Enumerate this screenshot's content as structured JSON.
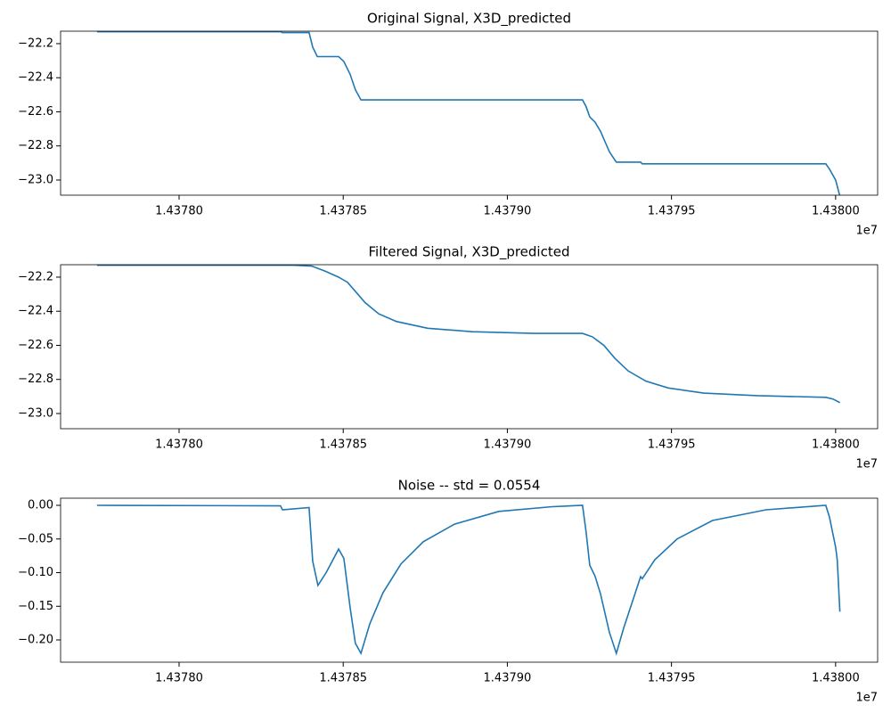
{
  "chart_data": [
    {
      "type": "line",
      "title": "Original Signal, X3D_predicted",
      "color": "#1f77b4",
      "x_offset_label": "1e7",
      "x": [
        14377750,
        14378309,
        14378315,
        14378396,
        14378407,
        14378421,
        14378486,
        14378502,
        14378521,
        14378537,
        14378554,
        14379229,
        14379240,
        14379251,
        14379267,
        14379284,
        14379311,
        14379332,
        14379406,
        14379411,
        14379970,
        14379981,
        14380000,
        14380013
      ],
      "values": [
        -22.13,
        -22.13,
        -22.135,
        -22.135,
        -22.22,
        -22.276,
        -22.276,
        -22.305,
        -22.38,
        -22.47,
        -22.53,
        -22.53,
        -22.57,
        -22.63,
        -22.66,
        -22.715,
        -22.835,
        -22.895,
        -22.895,
        -22.905,
        -22.905,
        -22.935,
        -23.0,
        -23.095
      ],
      "xlim": [
        14377639,
        14380128
      ],
      "ylim": [
        -23.089,
        -22.127
      ],
      "xticks": [
        {
          "value": 14378000,
          "label": "1.43780"
        },
        {
          "value": 14378500,
          "label": "1.43785"
        },
        {
          "value": 14379000,
          "label": "1.43790"
        },
        {
          "value": 14379500,
          "label": "1.43795"
        },
        {
          "value": 14380000,
          "label": "1.43800"
        }
      ],
      "yticks": [
        {
          "value": -22.2,
          "label": "−22.2"
        },
        {
          "value": -22.4,
          "label": "−22.4"
        },
        {
          "value": -22.6,
          "label": "−22.6"
        },
        {
          "value": -22.8,
          "label": "−22.8"
        },
        {
          "value": -23.0,
          "label": "−23.0"
        }
      ]
    },
    {
      "type": "line",
      "title": "Filtered Signal, X3D_predicted",
      "color": "#1f77b4",
      "x_offset_label": "1e7",
      "x": [
        14377750,
        14378350,
        14378404,
        14378445,
        14378486,
        14378513,
        14378540,
        14378567,
        14378608,
        14378662,
        14378757,
        14378893,
        14379083,
        14379229,
        14379259,
        14379294,
        14379327,
        14379368,
        14379422,
        14379490,
        14379598,
        14379761,
        14379970,
        14379992,
        14380013
      ],
      "values": [
        -22.13,
        -22.13,
        -22.135,
        -22.165,
        -22.2,
        -22.23,
        -22.29,
        -22.35,
        -22.415,
        -22.46,
        -22.5,
        -22.52,
        -22.53,
        -22.53,
        -22.55,
        -22.6,
        -22.675,
        -22.75,
        -22.81,
        -22.85,
        -22.88,
        -22.895,
        -22.905,
        -22.915,
        -22.936
      ],
      "xlim": [
        14377639,
        14380128
      ],
      "ylim": [
        -23.089,
        -22.127
      ],
      "xticks": [
        {
          "value": 14378000,
          "label": "1.43780"
        },
        {
          "value": 14378500,
          "label": "1.43785"
        },
        {
          "value": 14379000,
          "label": "1.43790"
        },
        {
          "value": 14379500,
          "label": "1.43795"
        },
        {
          "value": 14380000,
          "label": "1.43800"
        }
      ],
      "yticks": [
        {
          "value": -22.2,
          "label": "−22.2"
        },
        {
          "value": -22.4,
          "label": "−22.4"
        },
        {
          "value": -22.6,
          "label": "−22.6"
        },
        {
          "value": -22.8,
          "label": "−22.8"
        },
        {
          "value": -23.0,
          "label": "−23.0"
        }
      ]
    },
    {
      "type": "line",
      "title": "Noise -- std = 0.0554",
      "color": "#1f77b4",
      "x_offset_label": "1e7",
      "x": [
        14377750,
        14378309,
        14378315,
        14378396,
        14378407,
        14378423,
        14378448,
        14378486,
        14378502,
        14378521,
        14378537,
        14378554,
        14378581,
        14378621,
        14378676,
        14378744,
        14378839,
        14378974,
        14379137,
        14379229,
        14379240,
        14379251,
        14379267,
        14379284,
        14379311,
        14379332,
        14379354,
        14379381,
        14379406,
        14379411,
        14379449,
        14379517,
        14379625,
        14379788,
        14379970,
        14379981,
        14380000,
        14380005,
        14380013
      ],
      "values": [
        0,
        -0.0007,
        -0.0066,
        -0.0033,
        -0.083,
        -0.119,
        -0.1,
        -0.065,
        -0.079,
        -0.152,
        -0.205,
        -0.22,
        -0.176,
        -0.13,
        -0.087,
        -0.054,
        -0.028,
        -0.009,
        -0.002,
        0,
        -0.04,
        -0.089,
        -0.105,
        -0.132,
        -0.189,
        -0.22,
        -0.183,
        -0.143,
        -0.106,
        -0.109,
        -0.081,
        -0.05,
        -0.0225,
        -0.0066,
        0,
        -0.017,
        -0.062,
        -0.081,
        -0.158
      ],
      "xlim": [
        14377639,
        14380128
      ],
      "ylim": [
        -0.2331,
        0.0106
      ],
      "xticks": [
        {
          "value": 14378000,
          "label": "1.43780"
        },
        {
          "value": 14378500,
          "label": "1.43785"
        },
        {
          "value": 14379000,
          "label": "1.43790"
        },
        {
          "value": 14379500,
          "label": "1.43795"
        },
        {
          "value": 14380000,
          "label": "1.43800"
        }
      ],
      "yticks": [
        {
          "value": 0,
          "label": "0.00"
        },
        {
          "value": -0.05,
          "label": "−0.05"
        },
        {
          "value": -0.1,
          "label": "−0.10"
        },
        {
          "value": -0.15,
          "label": "−0.15"
        },
        {
          "value": -0.2,
          "label": "−0.20"
        }
      ]
    }
  ]
}
